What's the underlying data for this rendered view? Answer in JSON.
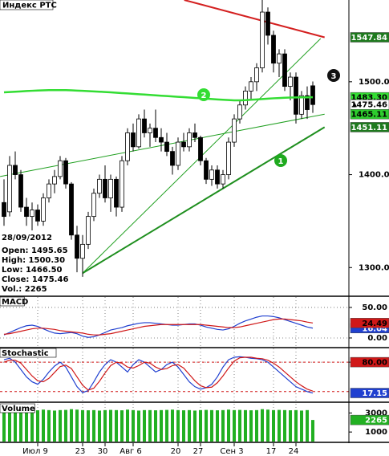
{
  "chart_data": [
    {
      "type": "candlestick",
      "title": "Индекс РТС",
      "categories": [
        null,
        null,
        null,
        null,
        null,
        null,
        "Июл 9",
        null,
        null,
        null,
        null,
        null,
        null,
        null,
        "23",
        null,
        null,
        null,
        "30",
        null,
        null,
        null,
        null,
        "Авг 6",
        null,
        null,
        null,
        null,
        null,
        null,
        null,
        "20",
        null,
        null,
        null,
        "27",
        null,
        null,
        null,
        null,
        null,
        "Сен 3",
        null,
        null,
        null,
        null,
        null,
        null,
        "17",
        null,
        null,
        null,
        "24",
        null,
        null,
        null
      ],
      "open": [
        1370,
        1360,
        1410,
        1400,
        1365,
        1355,
        1362,
        1350,
        1375,
        1390,
        1398,
        1415,
        1390,
        1335,
        1310,
        1325,
        1355,
        1380,
        1395,
        1375,
        1395,
        1365,
        1415,
        1445,
        1430,
        1460,
        1445,
        1450,
        1440,
        1435,
        1425,
        1410,
        1435,
        1430,
        1445,
        1440,
        1415,
        1395,
        1405,
        1390,
        1400,
        1435,
        1460,
        1475,
        1490,
        1500,
        1515,
        1575,
        1550,
        1520,
        1530,
        1495,
        1505,
        1465,
        1485,
        1495.65
      ],
      "high": [
        1395,
        1420,
        1425,
        1405,
        1375,
        1370,
        1368,
        1380,
        1395,
        1405,
        1420,
        1418,
        1392,
        1345,
        1335,
        1360,
        1385,
        1400,
        1410,
        1400,
        1398,
        1420,
        1450,
        1455,
        1465,
        1470,
        1455,
        1470,
        1450,
        1445,
        1430,
        1440,
        1445,
        1450,
        1455,
        1442,
        1418,
        1410,
        1410,
        1405,
        1440,
        1465,
        1480,
        1495,
        1505,
        1520,
        1590,
        1580,
        1555,
        1535,
        1535,
        1510,
        1510,
        1490,
        1495,
        1500.3
      ],
      "low": [
        1345,
        1355,
        1395,
        1360,
        1345,
        1340,
        1345,
        1345,
        1370,
        1380,
        1395,
        1385,
        1330,
        1295,
        1290,
        1320,
        1350,
        1375,
        1370,
        1360,
        1355,
        1360,
        1410,
        1425,
        1428,
        1440,
        1430,
        1435,
        1425,
        1420,
        1400,
        1405,
        1425,
        1425,
        1435,
        1410,
        1390,
        1388,
        1385,
        1385,
        1395,
        1430,
        1455,
        1470,
        1480,
        1490,
        1510,
        1540,
        1510,
        1505,
        1490,
        1480,
        1455,
        1460,
        1460,
        1466.5
      ],
      "close": [
        1355,
        1410,
        1400,
        1365,
        1355,
        1362,
        1350,
        1375,
        1390,
        1398,
        1415,
        1390,
        1335,
        1310,
        1325,
        1355,
        1380,
        1395,
        1375,
        1395,
        1365,
        1415,
        1445,
        1430,
        1460,
        1445,
        1450,
        1440,
        1435,
        1425,
        1410,
        1435,
        1430,
        1445,
        1440,
        1415,
        1395,
        1405,
        1390,
        1400,
        1435,
        1460,
        1475,
        1490,
        1500,
        1515,
        1575,
        1550,
        1520,
        1530,
        1495,
        1505,
        1465,
        1485,
        1470,
        1475.46
      ],
      "up_color": "#ffffff",
      "down_color": "#000000",
      "moving_average": {
        "color": "#33dd33",
        "values": [
          1488.6,
          1489,
          1489.3,
          1489.6,
          1490,
          1490.3,
          1490.6,
          1490.8,
          1491,
          1491,
          1491,
          1491,
          1490.8,
          1490.5,
          1490.2,
          1489.9,
          1489.6,
          1489.3,
          1489,
          1488.6,
          1488.2,
          1487.8,
          1487.4,
          1487,
          1486.6,
          1486.2,
          1485.8,
          1485.4,
          1485,
          1484.6,
          1484.2,
          1483.8,
          1483.4,
          1483,
          1482.6,
          1482.2,
          1481.8,
          1481.4,
          1481,
          1480.6,
          1480.3,
          1480,
          1480,
          1480.2,
          1480.6,
          1481,
          1481.4,
          1481.8,
          1482.2,
          1482.5,
          1482.8,
          1483,
          1483.1,
          1483.2,
          1483.25,
          1483.3
        ],
        "value_labels": [
          null,
          null,
          null,
          null,
          null,
          null,
          null,
          null,
          null,
          null,
          null,
          null,
          null,
          null,
          null,
          null,
          null,
          null,
          null,
          null,
          null,
          null,
          null,
          null,
          null,
          null,
          null,
          null,
          null,
          null,
          null,
          null,
          null,
          null,
          null,
          null,
          null,
          null,
          null,
          null,
          null,
          null,
          null,
          null,
          null,
          null,
          null,
          null,
          null,
          null,
          null,
          null,
          null,
          null,
          null,
          "1483.30"
        ]
      },
      "trendlines": [
        {
          "start": [
            32.1,
            1588
          ],
          "end": [
            57.1,
            1547.84
          ],
          "color": "#d42020",
          "width": 2,
          "label_bg": "#1e7a1e",
          "label_fg": "#ffffff"
        },
        {
          "start": [
            14,
            1294
          ],
          "end": [
            57.1,
            1451.11
          ],
          "color": "#1f8f1f",
          "width": 2,
          "label_bg": "#1e7a1e",
          "label_fg": "#ffffff"
        },
        {
          "start": [
            -0.7,
            1398
          ],
          "end": [
            57.1,
            1465.11
          ],
          "color": "#1f9f1f",
          "width": 1,
          "label_bg": "#2ecc2e",
          "label_fg": "#000000"
        },
        {
          "start": [
            14,
            1294
          ],
          "end": [
            56.4,
            1546.5
          ],
          "color": "#1f9f1f",
          "width": 1
        }
      ],
      "markers": [
        {
          "label": "1",
          "color": "#1faa1f"
        },
        {
          "label": "2",
          "color": "#33dd33"
        },
        {
          "label": "3",
          "color": "#111111"
        }
      ],
      "info": {
        "date": "28/09/2012",
        "lines": [
          "Open: 1495.65",
          "High: 1500.30",
          "Low: 1466.50",
          "Close: 1475.46",
          "Vol.: 2265"
        ]
      },
      "ylim": [
        1270,
        1588
      ],
      "yticks": [
        {
          "value": 1300,
          "label": "1300.00"
        },
        {
          "value": 1400,
          "label": "1400.00"
        },
        {
          "value": 1500,
          "label": "1500.00"
        }
      ]
    },
    {
      "type": "line",
      "title": "MACD",
      "series": [
        {
          "color": "#2040d0",
          "label_fg": "#ffffff",
          "values": [
            5,
            9,
            13,
            17,
            20,
            21,
            19,
            15,
            11,
            8,
            7,
            8,
            9,
            7,
            3,
            1,
            2,
            5,
            9,
            13,
            15,
            17,
            20,
            22,
            24,
            25,
            25,
            24,
            23,
            22,
            21,
            21,
            22,
            23,
            23,
            21,
            18,
            16,
            14,
            13,
            15,
            19,
            24,
            28,
            31,
            34,
            36,
            36,
            35,
            33,
            30,
            27,
            24,
            21,
            18,
            16.04
          ]
        },
        {
          "color": "#d01818",
          "label_fg": "#000000",
          "values": [
            6,
            7,
            9,
            11,
            13,
            15,
            16,
            16,
            15,
            14,
            12,
            11,
            10,
            9,
            8,
            6,
            5,
            5,
            6,
            7,
            9,
            11,
            13,
            15,
            17,
            19,
            20,
            21,
            22,
            22,
            22,
            22,
            22,
            22,
            22,
            22,
            21,
            20,
            19,
            18,
            17,
            17,
            18,
            20,
            22,
            24,
            26,
            28,
            30,
            31,
            31,
            30,
            29,
            28,
            26,
            24.49
          ]
        }
      ],
      "ylim": [
        -14.5,
        67
      ],
      "yticks": [
        {
          "value": 0,
          "label": "0.00"
        },
        {
          "value": 50,
          "label": "50.00"
        }
      ]
    },
    {
      "type": "line",
      "title": "Stochastic",
      "series": [
        {
          "color": "#2040d0",
          "label_fg": "#ffffff",
          "values": [
            85,
            88,
            80,
            65,
            50,
            40,
            35,
            45,
            60,
            72,
            80,
            70,
            50,
            30,
            18,
            22,
            40,
            60,
            75,
            85,
            80,
            70,
            60,
            75,
            85,
            80,
            70,
            60,
            65,
            75,
            80,
            70,
            55,
            40,
            30,
            25,
            28,
            35,
            50,
            70,
            85,
            90,
            91,
            90,
            88,
            87,
            85,
            80,
            70,
            60,
            50,
            40,
            30,
            25,
            20,
            17.15
          ]
        },
        {
          "color": "#d01818",
          "values": [
            80,
            84,
            84,
            78,
            65,
            52,
            42,
            40,
            47,
            59,
            71,
            74,
            67,
            50,
            33,
            23,
            27,
            41,
            58,
            73,
            80,
            78,
            70,
            68,
            73,
            80,
            78,
            70,
            65,
            67,
            73,
            75,
            68,
            55,
            42,
            32,
            28,
            29,
            38,
            52,
            68,
            82,
            89,
            90,
            90,
            88,
            87,
            84,
            78,
            70,
            60,
            50,
            40,
            32,
            25,
            21
          ]
        }
      ],
      "hlines": [
        80,
        20
      ],
      "hline_color": "#d01818",
      "ylim": [
        0,
        108
      ],
      "yticks": [
        {
          "value": 80,
          "label": "80.00"
        }
      ]
    },
    {
      "type": "bar",
      "title": "Volume",
      "color": "#22b022",
      "values": [
        3300,
        3250,
        3350,
        3300,
        3200,
        3300,
        3280,
        3350,
        3300,
        3250,
        3300,
        3320,
        3400,
        3350,
        3300,
        3280,
        3300,
        3250,
        3300,
        3320,
        3300,
        3280,
        3350,
        3300,
        3250,
        3300,
        3300,
        3280,
        3300,
        3320,
        3350,
        3300,
        3280,
        3300,
        3250,
        3300,
        3320,
        3300,
        3280,
        3300,
        3350,
        3300,
        3320,
        3300,
        3280,
        3300,
        3400,
        3350,
        3300,
        3320,
        3300,
        3280,
        3300,
        3250,
        3300,
        2265
      ],
      "ylim": [
        0,
        3960
      ],
      "yticks": [
        1000,
        3000
      ]
    }
  ]
}
